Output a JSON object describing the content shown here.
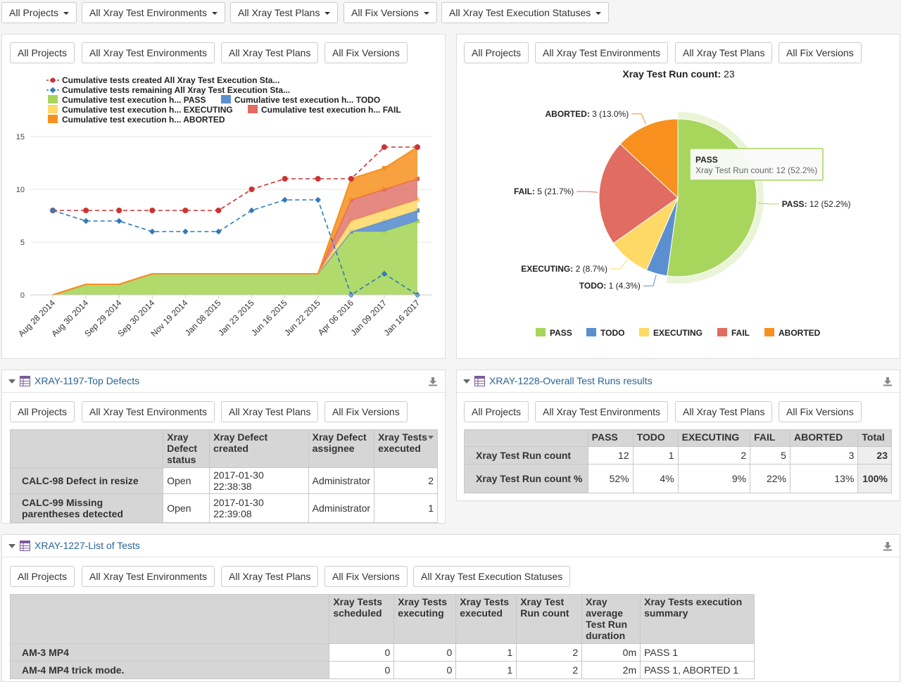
{
  "top_filters": [
    "All Projects",
    "All Xray Test Environments",
    "All Xray Test Plans",
    "All Fix Versions",
    "All Xray Test Execution Statuses"
  ],
  "panel_filters": [
    "All Projects",
    "All Xray Test Environments",
    "All Xray Test Plans",
    "All Fix Versions"
  ],
  "tests_filter_extra": "All Xray Test Execution Statuses",
  "colors": {
    "pass": "#a8d65c",
    "todo": "#5b8fcf",
    "executing": "#ffd966",
    "fail": "#e06c62",
    "aborted": "#f7901e",
    "line_red": "#cc3333",
    "line_blue": "#2f7ab9"
  },
  "cumulative_chart": {
    "legend": {
      "created": "Cumulative tests created All Xray Test Execution Sta...",
      "remaining": "Cumulative tests remaining All Xray Test Execution Sta...",
      "pass": "Cumulative test execution h... PASS",
      "todo": "Cumulative test execution h... TODO",
      "executing": "Cumulative test execution h... EXECUTING",
      "fail": "Cumulative test execution h... FAIL",
      "aborted": "Cumulative test execution h... ABORTED"
    }
  },
  "chart_data": [
    {
      "type": "line",
      "title": "",
      "categories": [
        "Aug 28 2014",
        "Aug 30 2014",
        "Sep 29 2014",
        "Sep 30 2014",
        "Nov 19 2014",
        "Jan 08 2015",
        "Jan 23 2015",
        "Jun 16 2015",
        "Jun 22 2015",
        "Apr 06 2016",
        "Jan 09 2017",
        "Jan 16 2017"
      ],
      "ylim": [
        0,
        15
      ],
      "yticks": [
        0,
        5,
        10,
        15
      ],
      "series": [
        {
          "name": "Cumulative tests created All Xray Test Execution Sta...",
          "kind": "line",
          "values": [
            8,
            8,
            8,
            8,
            8,
            8,
            10,
            11,
            11,
            11,
            14,
            14
          ]
        },
        {
          "name": "Cumulative tests remaining All Xray Test Execution Sta...",
          "kind": "line",
          "values": [
            8,
            7,
            7,
            6,
            6,
            6,
            8,
            9,
            9,
            0,
            2,
            0
          ]
        },
        {
          "name": "PASS",
          "kind": "area",
          "values": [
            0,
            1,
            1,
            2,
            2,
            2,
            2,
            2,
            2,
            6,
            6,
            7
          ]
        },
        {
          "name": "TODO",
          "kind": "area",
          "values": [
            0,
            0,
            0,
            0,
            0,
            0,
            0,
            0,
            0,
            0,
            1,
            1
          ]
        },
        {
          "name": "EXECUTING",
          "kind": "area",
          "values": [
            0,
            0,
            0,
            0,
            0,
            0,
            0,
            0,
            0,
            1,
            1,
            1
          ]
        },
        {
          "name": "FAIL",
          "kind": "area",
          "values": [
            0,
            0,
            0,
            0,
            0,
            0,
            0,
            0,
            0,
            2,
            2,
            2
          ]
        },
        {
          "name": "ABORTED",
          "kind": "area",
          "values": [
            0,
            0,
            0,
            0,
            0,
            0,
            0,
            0,
            0,
            2,
            2,
            3
          ]
        }
      ]
    },
    {
      "type": "pie",
      "title": "Xray Test Run count",
      "title_value": "23",
      "slices": [
        {
          "name": "PASS",
          "value": 12,
          "label": "PASS: 12 (52.2%)"
        },
        {
          "name": "TODO",
          "value": 1,
          "label": "TODO: 1 (4.3%)"
        },
        {
          "name": "EXECUTING",
          "value": 2,
          "label": "EXECUTING: 2 (8.7%)"
        },
        {
          "name": "FAIL",
          "value": 5,
          "label": "FAIL: 5 (21.7%)"
        },
        {
          "name": "ABORTED",
          "value": 3,
          "label": "ABORTED: 3 (13.0%)"
        }
      ],
      "tooltip": {
        "title": "PASS",
        "text": "Xray Test Run count: 12 (52.2%)"
      }
    }
  ],
  "defects_panel": {
    "title": "XRAY-1197-Top Defects",
    "columns": [
      "Xray Defect status",
      "Xray Defect created",
      "Xray Defect assignee",
      "Xray Tests executed"
    ],
    "rows": [
      {
        "name": "CALC-98 Defect in resize",
        "status": "Open",
        "created": "2017-01-30 22:38:38",
        "assignee": "Administrator",
        "executed": "2"
      },
      {
        "name": "CALC-99 Missing parentheses detected",
        "status": "Open",
        "created": "2017-01-30 22:39:08",
        "assignee": "Administrator",
        "executed": "1"
      }
    ]
  },
  "runs_panel": {
    "title": "XRAY-1228-Overall Test Runs results",
    "columns": [
      "PASS",
      "TODO",
      "EXECUTING",
      "FAIL",
      "ABORTED",
      "Total"
    ],
    "rows": [
      {
        "name": "Xray Test Run count",
        "values": [
          "12",
          "1",
          "2",
          "5",
          "3",
          "23"
        ]
      },
      {
        "name": "Xray Test Run count %",
        "values": [
          "52%",
          "4%",
          "9%",
          "22%",
          "13%",
          "100%"
        ]
      }
    ]
  },
  "tests_panel": {
    "title": "XRAY-1227-List of Tests",
    "columns": [
      "Xray Tests scheduled",
      "Xray Tests executing",
      "Xray Tests executed",
      "Xray Test Run count",
      "Xray average Test Run duration",
      "Xray Tests execution summary"
    ],
    "rows": [
      {
        "name": "AM-3 MP4",
        "values": [
          "0",
          "0",
          "1",
          "2",
          "0m",
          "PASS 1"
        ]
      },
      {
        "name": "AM-4 MP4 trick mode.",
        "values": [
          "0",
          "0",
          "1",
          "2",
          "2m",
          "PASS 1, ABORTED 1"
        ]
      }
    ]
  }
}
